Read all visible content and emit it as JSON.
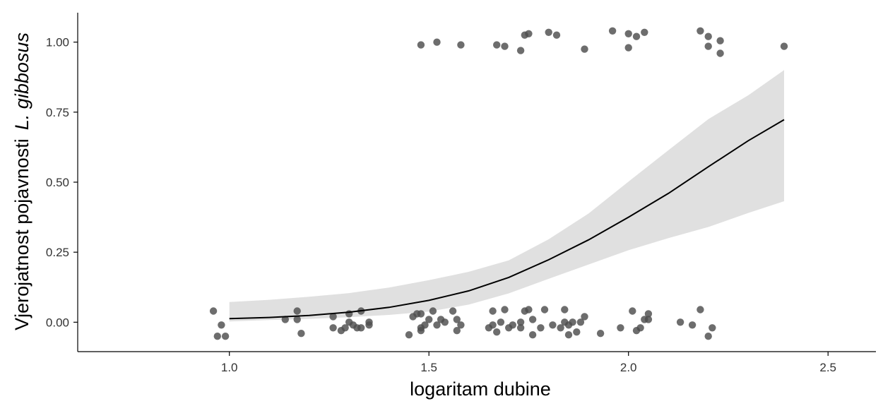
{
  "chart_data": {
    "type": "scatter",
    "title": "",
    "xlabel": "logaritam dubine",
    "ylabel_prefix": "Vjerojatnost pojavnosti",
    "ylabel_species": "L. gibbosus",
    "xlim": [
      0.62,
      2.62
    ],
    "ylim": [
      -0.105,
      1.105
    ],
    "x_ticks": [
      1.0,
      1.5,
      2.0,
      2.5
    ],
    "x_tick_labels": [
      "1.0",
      "1.5",
      "2.0",
      "2.5"
    ],
    "y_ticks": [
      0.0,
      0.25,
      0.5,
      0.75,
      1.0
    ],
    "y_tick_labels": [
      "0.00",
      "0.25",
      "0.50",
      "0.75",
      "1.00"
    ],
    "grid": false,
    "legend": "none",
    "colors": {
      "points": "#4d4d4d",
      "fit_line": "#000000",
      "ribbon": "#e0e0e0"
    },
    "fit_line": {
      "x": [
        1.0,
        1.1,
        1.2,
        1.3,
        1.4,
        1.5,
        1.6,
        1.7,
        1.8,
        1.9,
        2.0,
        2.1,
        2.2,
        2.3,
        2.39
      ],
      "y": [
        0.013,
        0.017,
        0.024,
        0.036,
        0.053,
        0.078,
        0.112,
        0.16,
        0.223,
        0.294,
        0.375,
        0.46,
        0.555,
        0.648,
        0.723
      ]
    },
    "confidence_band": {
      "x": [
        1.0,
        1.1,
        1.2,
        1.3,
        1.4,
        1.5,
        1.6,
        1.7,
        1.8,
        1.9,
        2.0,
        2.1,
        2.2,
        2.3,
        2.39
      ],
      "lower": [
        0.003,
        0.008,
        0.012,
        0.018,
        0.026,
        0.038,
        0.063,
        0.103,
        0.155,
        0.206,
        0.257,
        0.3,
        0.34,
        0.39,
        0.432
      ],
      "upper": [
        0.072,
        0.08,
        0.091,
        0.104,
        0.124,
        0.15,
        0.18,
        0.221,
        0.296,
        0.388,
        0.502,
        0.614,
        0.725,
        0.81,
        0.9
      ]
    },
    "points": {
      "x": [
        0.96,
        0.97,
        0.98,
        0.99,
        1.14,
        1.17,
        1.17,
        1.18,
        1.26,
        1.26,
        1.28,
        1.29,
        1.3,
        1.3,
        1.31,
        1.32,
        1.33,
        1.33,
        1.35,
        1.35,
        1.45,
        1.46,
        1.47,
        1.48,
        1.48,
        1.48,
        1.49,
        1.5,
        1.51,
        1.52,
        1.53,
        1.54,
        1.56,
        1.57,
        1.57,
        1.58,
        1.65,
        1.66,
        1.66,
        1.67,
        1.68,
        1.69,
        1.7,
        1.71,
        1.73,
        1.73,
        1.74,
        1.75,
        1.76,
        1.76,
        1.78,
        1.79,
        1.81,
        1.83,
        1.84,
        1.84,
        1.85,
        1.85,
        1.86,
        1.87,
        1.88,
        1.89,
        1.93,
        1.98,
        2.01,
        2.02,
        2.03,
        2.04,
        2.05,
        2.05,
        2.13,
        2.16,
        2.18,
        2.2,
        2.21,
        1.48,
        1.52,
        1.58,
        1.67,
        1.69,
        1.73,
        1.74,
        1.75,
        1.8,
        1.82,
        1.89,
        1.96,
        2.0,
        2.0,
        2.02,
        2.04,
        2.18,
        2.2,
        2.2,
        2.23,
        2.23,
        2.39
      ],
      "y": [
        0.04,
        -0.05,
        -0.01,
        -0.05,
        0.01,
        0.01,
        0.04,
        -0.04,
        0.02,
        -0.02,
        -0.03,
        -0.02,
        0.0,
        0.03,
        -0.01,
        -0.02,
        0.04,
        -0.02,
        -0.01,
        0.0,
        -0.045,
        0.02,
        0.03,
        -0.02,
        0.03,
        -0.03,
        -0.01,
        0.01,
        0.04,
        -0.01,
        0.01,
        0.0,
        0.04,
        0.01,
        -0.03,
        -0.01,
        -0.02,
        0.04,
        -0.01,
        -0.035,
        0.0,
        0.045,
        -0.02,
        -0.01,
        0.0,
        -0.02,
        0.04,
        0.045,
        0.01,
        -0.045,
        -0.02,
        0.045,
        -0.01,
        -0.02,
        0.045,
        0.0,
        -0.045,
        -0.01,
        0.0,
        -0.035,
        0.0,
        0.02,
        -0.04,
        -0.02,
        0.04,
        -0.03,
        -0.02,
        0.01,
        0.01,
        0.03,
        0.0,
        -0.01,
        0.045,
        -0.05,
        -0.02,
        0.99,
        1.0,
        0.99,
        0.99,
        0.985,
        0.97,
        1.025,
        1.03,
        1.035,
        1.025,
        0.975,
        1.04,
        1.03,
        0.98,
        1.02,
        1.035,
        1.04,
        0.985,
        1.02,
        0.96,
        1.005,
        0.985
      ]
    }
  }
}
